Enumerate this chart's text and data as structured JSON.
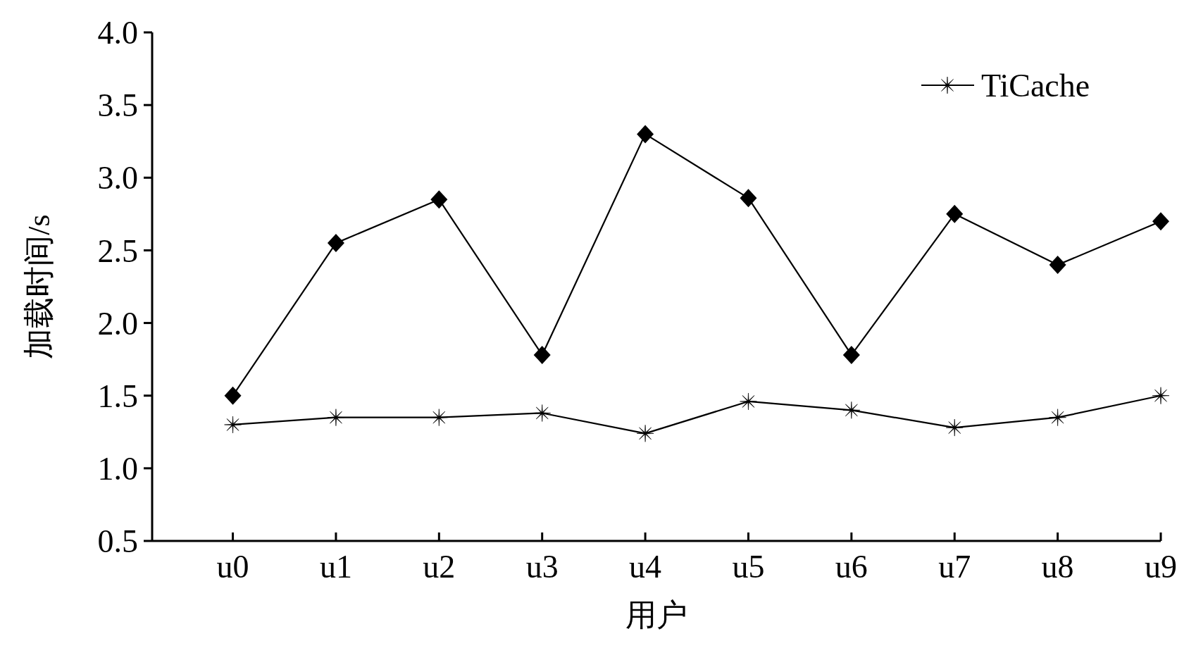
{
  "chart_data": {
    "type": "line",
    "xlabel": "用户",
    "ylabel": "加载时间/s",
    "categories": [
      "u0",
      "u1",
      "u2",
      "u3",
      "u4",
      "u5",
      "u6",
      "u7",
      "u8",
      "u9"
    ],
    "series": [
      {
        "name": "TiCache",
        "color": "#000000",
        "marker": "cross",
        "values": [
          1.3,
          1.35,
          1.35,
          1.38,
          1.24,
          1.46,
          1.4,
          1.28,
          1.35,
          1.5
        ]
      },
      {
        "color": "#000000",
        "marker": "diamond",
        "values": [
          1.5,
          2.55,
          2.85,
          1.78,
          3.3,
          2.86,
          1.78,
          2.75,
          2.4,
          2.7
        ]
      }
    ],
    "ylim": [
      0.5,
      4.0
    ],
    "yticks": [
      {
        "value": 0.5,
        "label": "0.5"
      },
      {
        "value": 1.0,
        "label": "1.0"
      },
      {
        "value": 1.5,
        "label": "1.5"
      },
      {
        "value": 2.0,
        "label": "2.0"
      },
      {
        "value": 2.5,
        "label": "2.5"
      },
      {
        "value": 3.0,
        "label": "3.0"
      },
      {
        "value": 3.5,
        "label": "3.5"
      },
      {
        "value": 4.0,
        "label": "4.0"
      }
    ],
    "grid": false,
    "legend": "top right",
    "line_style": "solid"
  }
}
